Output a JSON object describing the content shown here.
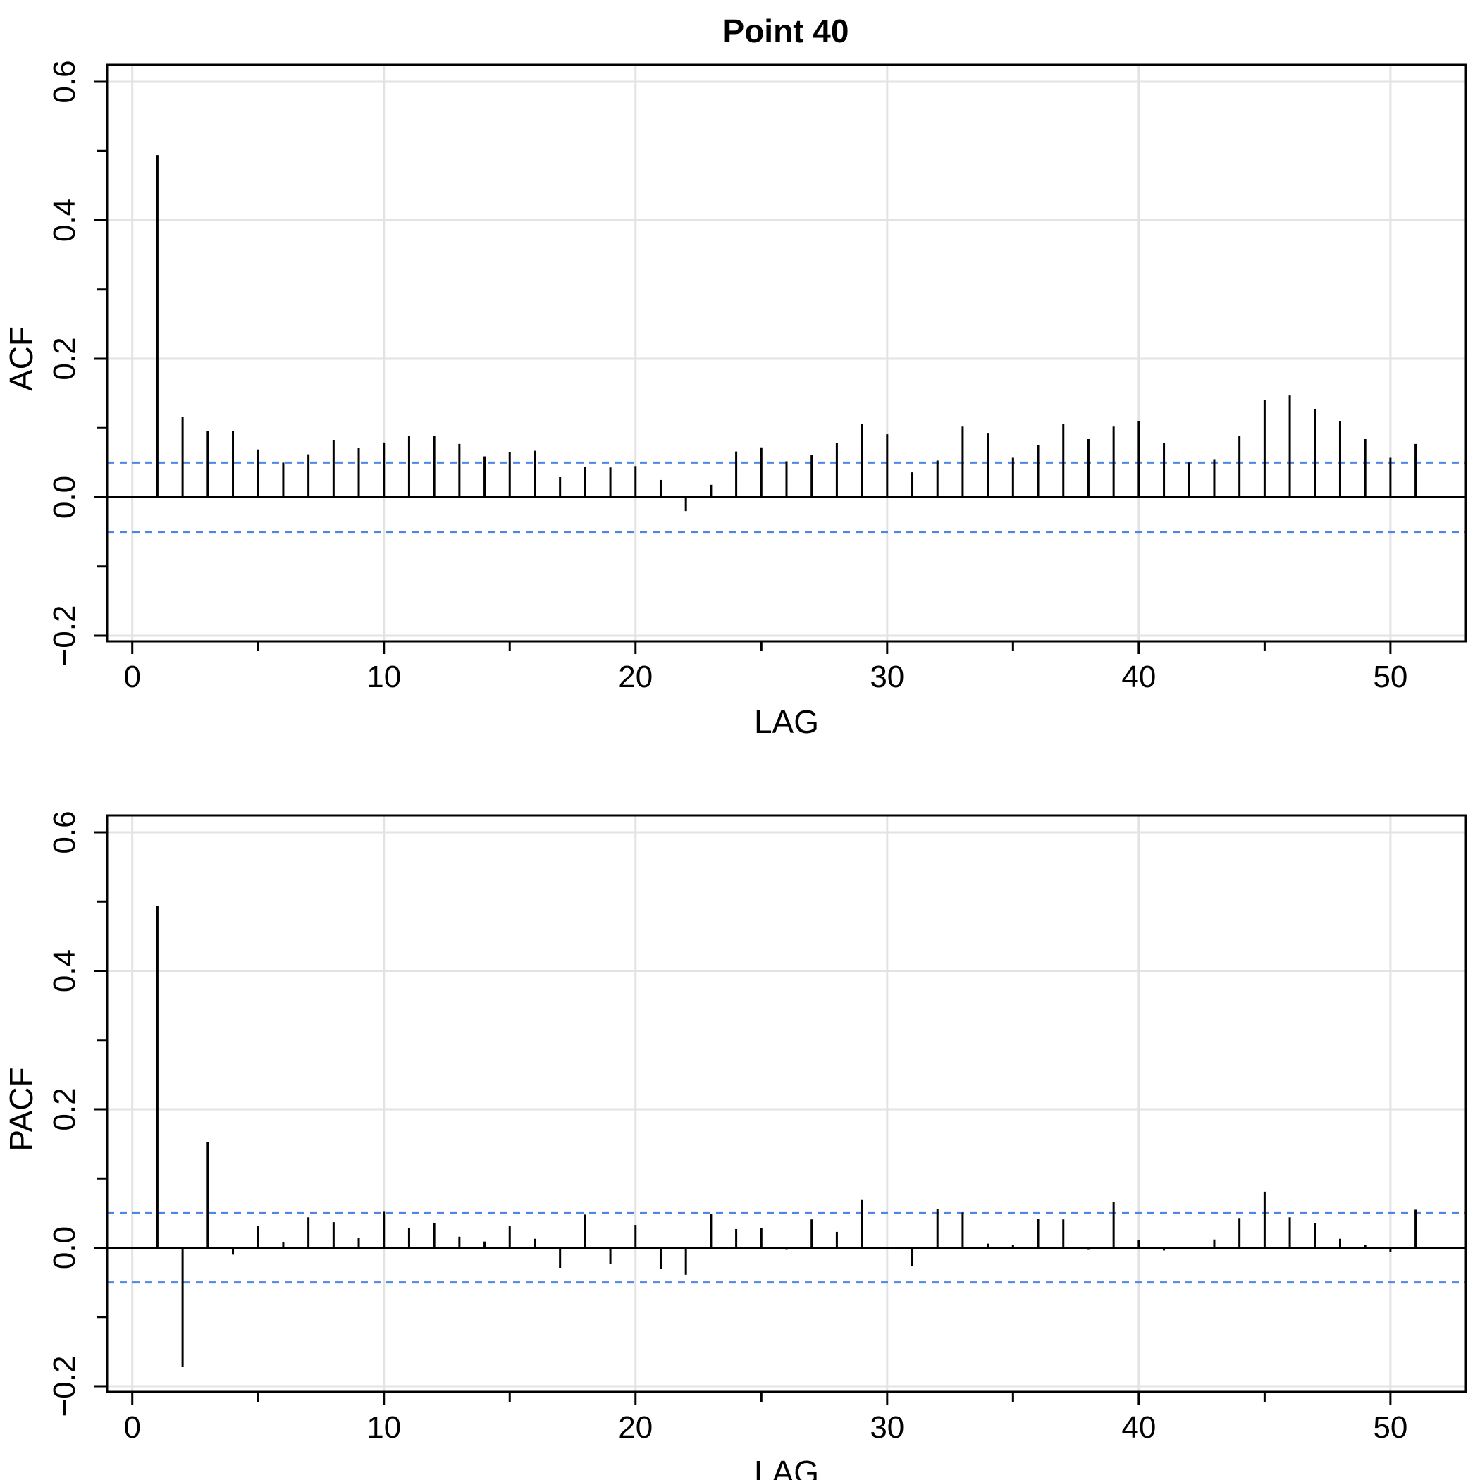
{
  "title": "Point  40",
  "colors": {
    "ci": "#4f86e6",
    "grid": "#e3e3e3",
    "stem": "#000000"
  },
  "chart_data": [
    {
      "type": "bar",
      "style": "stem",
      "xlabel": "LAG",
      "ylabel": "ACF",
      "xlim": [
        -1,
        53
      ],
      "ylim": [
        -0.2,
        0.6
      ],
      "xticks": [
        0,
        10,
        20,
        30,
        40,
        50
      ],
      "yticks": [
        -0.2,
        0.0,
        0.2,
        0.4,
        0.6
      ],
      "ytick_labels": [
        "−0.2",
        "0.0",
        "0.2",
        "0.4",
        "0.6"
      ],
      "grid": true,
      "ci": [
        0.05,
        -0.05
      ],
      "x": [
        1,
        2,
        3,
        4,
        5,
        6,
        7,
        8,
        9,
        10,
        11,
        12,
        13,
        14,
        15,
        16,
        17,
        18,
        19,
        20,
        21,
        22,
        23,
        24,
        25,
        26,
        27,
        28,
        29,
        30,
        31,
        32,
        33,
        34,
        35,
        36,
        37,
        38,
        39,
        40,
        41,
        42,
        43,
        44,
        45,
        46,
        47,
        48,
        49,
        50,
        51
      ],
      "values": [
        0.494,
        0.116,
        0.096,
        0.096,
        0.069,
        0.05,
        0.062,
        0.082,
        0.071,
        0.079,
        0.088,
        0.088,
        0.077,
        0.059,
        0.065,
        0.067,
        0.029,
        0.044,
        0.043,
        0.045,
        0.025,
        -0.02,
        0.018,
        0.066,
        0.072,
        0.052,
        0.061,
        0.078,
        0.106,
        0.091,
        0.036,
        0.053,
        0.102,
        0.092,
        0.057,
        0.075,
        0.106,
        0.084,
        0.102,
        0.11,
        0.078,
        0.05,
        0.055,
        0.088,
        0.141,
        0.147,
        0.127,
        0.11,
        0.084,
        0.057,
        0.077
      ]
    },
    {
      "type": "bar",
      "style": "stem",
      "xlabel": "LAG",
      "ylabel": "PACF",
      "xlim": [
        -1,
        53
      ],
      "ylim": [
        -0.2,
        0.6
      ],
      "xticks": [
        0,
        10,
        20,
        30,
        40,
        50
      ],
      "yticks": [
        -0.2,
        0.0,
        0.2,
        0.4,
        0.6
      ],
      "ytick_labels": [
        "−0.2",
        "0.0",
        "0.2",
        "0.4",
        "0.6"
      ],
      "grid": true,
      "ci": [
        0.05,
        -0.05
      ],
      "x": [
        1,
        2,
        3,
        4,
        5,
        6,
        7,
        8,
        9,
        10,
        11,
        12,
        13,
        14,
        15,
        16,
        17,
        18,
        19,
        20,
        21,
        22,
        23,
        24,
        25,
        26,
        27,
        28,
        29,
        30,
        31,
        32,
        33,
        34,
        35,
        36,
        37,
        38,
        39,
        40,
        41,
        42,
        43,
        44,
        45,
        46,
        47,
        48,
        49,
        50,
        51
      ],
      "values": [
        0.494,
        -0.172,
        0.153,
        -0.01,
        0.031,
        0.008,
        0.044,
        0.037,
        0.014,
        0.052,
        0.028,
        0.036,
        0.016,
        0.009,
        0.031,
        0.013,
        -0.029,
        0.048,
        -0.023,
        0.033,
        -0.03,
        -0.039,
        0.049,
        0.027,
        0.028,
        -0.002,
        0.041,
        0.023,
        0.07,
        0.001,
        -0.027,
        0.056,
        0.051,
        0.006,
        0.004,
        0.042,
        0.041,
        -0.002,
        0.066,
        0.011,
        -0.004,
        0.0,
        0.012,
        0.043,
        0.081,
        0.044,
        0.036,
        0.013,
        0.004,
        -0.006,
        0.055
      ]
    }
  ]
}
